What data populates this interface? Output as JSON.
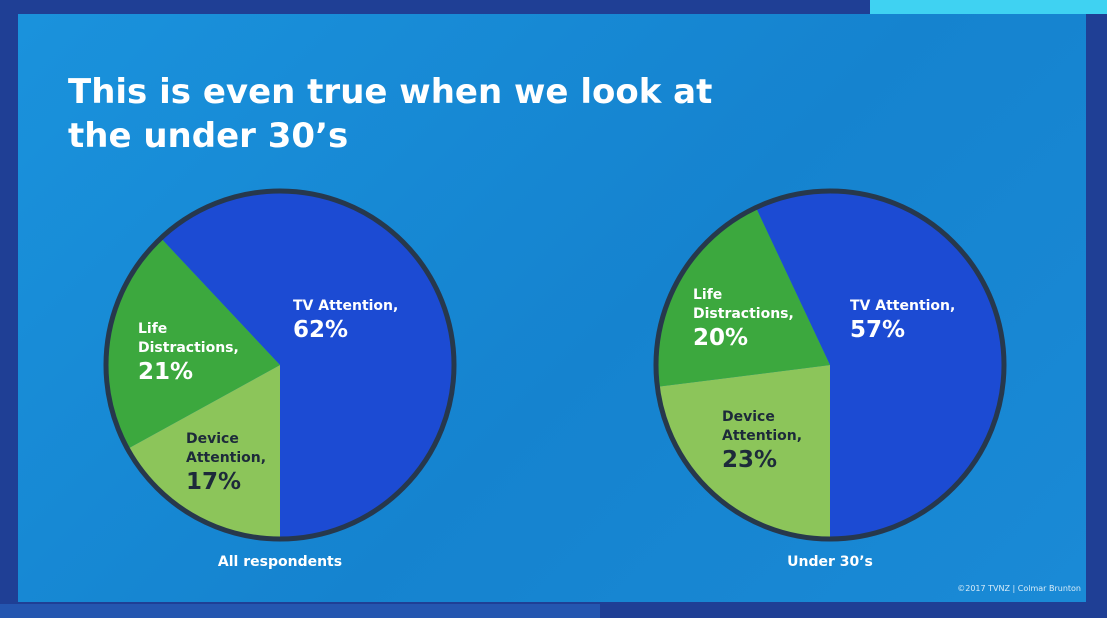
{
  "title": "This is even true when we look at the under 30’s",
  "footer": "©2017  TVNZ  |  Colmar Brunton",
  "chart_data": [
    {
      "type": "pie",
      "title": "All respondents",
      "categories": [
        "TV Attention,",
        "Device Attention,",
        "Life Distractions,"
      ],
      "values": [
        62,
        17,
        21
      ],
      "value_labels": [
        "62%",
        "17%",
        "21%"
      ],
      "colors": [
        "#1c4bd3",
        "#8cc55a",
        "#3ca83e"
      ]
    },
    {
      "type": "pie",
      "title": "Under 30’s",
      "categories": [
        "TV Attention,",
        "Device Attention,",
        "Life Distractions,"
      ],
      "values": [
        57,
        23,
        20
      ],
      "value_labels": [
        "57%",
        "23%",
        "20%"
      ],
      "colors": [
        "#1c4bd3",
        "#8cc55a",
        "#3ca83e"
      ]
    }
  ]
}
